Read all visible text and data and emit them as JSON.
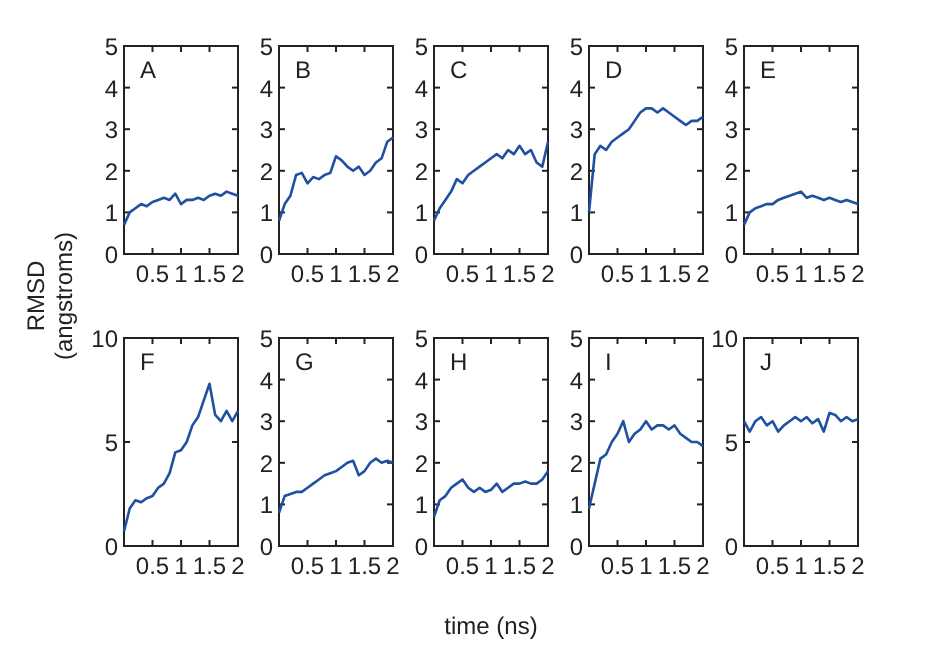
{
  "chart_data": [
    {
      "type": "line",
      "annotations": [
        "A"
      ],
      "ylabel": "RMSD\n(angstroms)",
      "x": [
        0,
        0.1,
        0.2,
        0.3,
        0.4,
        0.5,
        0.6,
        0.7,
        0.8,
        0.9,
        1,
        1.1,
        1.2,
        1.3,
        1.4,
        1.5,
        1.6,
        1.7,
        1.8,
        1.9,
        2
      ],
      "xlim": [
        0,
        2
      ],
      "xticks": [
        0.5,
        1,
        1.5,
        2
      ],
      "ylim": [
        0,
        5
      ],
      "yticks": [
        0,
        1,
        2,
        3,
        4,
        5
      ],
      "series": [
        {
          "color": "#2050a0",
          "values": [
            0.7,
            1.0,
            1.1,
            1.2,
            1.15,
            1.25,
            1.3,
            1.35,
            1.3,
            1.45,
            1.2,
            1.3,
            1.3,
            1.35,
            1.3,
            1.4,
            1.45,
            1.4,
            1.5,
            1.45,
            1.4
          ]
        }
      ]
    },
    {
      "type": "line",
      "annotations": [
        "B"
      ],
      "x": [
        0,
        0.1,
        0.2,
        0.3,
        0.4,
        0.5,
        0.6,
        0.7,
        0.8,
        0.9,
        1,
        1.1,
        1.2,
        1.3,
        1.4,
        1.5,
        1.6,
        1.7,
        1.8,
        1.9,
        2
      ],
      "xlim": [
        0,
        2
      ],
      "xticks": [
        0.5,
        1,
        1.5,
        2
      ],
      "ylim": [
        0,
        5
      ],
      "yticks": [
        0,
        1,
        2,
        3,
        4,
        5
      ],
      "series": [
        {
          "color": "#2050a0",
          "values": [
            0.8,
            1.2,
            1.4,
            1.9,
            1.95,
            1.7,
            1.85,
            1.8,
            1.9,
            1.95,
            2.35,
            2.25,
            2.1,
            2.0,
            2.1,
            1.9,
            2.0,
            2.2,
            2.3,
            2.7,
            2.8
          ]
        }
      ]
    },
    {
      "type": "line",
      "annotations": [
        "C"
      ],
      "x": [
        0,
        0.1,
        0.2,
        0.3,
        0.4,
        0.5,
        0.6,
        0.7,
        0.8,
        0.9,
        1,
        1.1,
        1.2,
        1.3,
        1.4,
        1.5,
        1.6,
        1.7,
        1.8,
        1.9,
        2
      ],
      "xlim": [
        0,
        2
      ],
      "xticks": [
        0.5,
        1,
        1.5,
        2
      ],
      "ylim": [
        0,
        5
      ],
      "yticks": [
        0,
        1,
        2,
        3,
        4,
        5
      ],
      "series": [
        {
          "color": "#2050a0",
          "values": [
            0.8,
            1.1,
            1.3,
            1.5,
            1.8,
            1.7,
            1.9,
            2.0,
            2.1,
            2.2,
            2.3,
            2.4,
            2.3,
            2.5,
            2.4,
            2.6,
            2.4,
            2.5,
            2.2,
            2.1,
            2.7
          ]
        }
      ]
    },
    {
      "type": "line",
      "annotations": [
        "D"
      ],
      "x": [
        0,
        0.1,
        0.2,
        0.3,
        0.4,
        0.5,
        0.6,
        0.7,
        0.8,
        0.9,
        1,
        1.1,
        1.2,
        1.3,
        1.4,
        1.5,
        1.6,
        1.7,
        1.8,
        1.9,
        2
      ],
      "xlim": [
        0,
        2
      ],
      "xticks": [
        0.5,
        1,
        1.5,
        2
      ],
      "ylim": [
        0,
        5
      ],
      "yticks": [
        0,
        1,
        2,
        3,
        4,
        5
      ],
      "series": [
        {
          "color": "#2050a0",
          "values": [
            1.0,
            2.4,
            2.6,
            2.5,
            2.7,
            2.8,
            2.9,
            3.0,
            3.2,
            3.4,
            3.5,
            3.5,
            3.4,
            3.5,
            3.4,
            3.3,
            3.2,
            3.1,
            3.2,
            3.2,
            3.3
          ]
        }
      ]
    },
    {
      "type": "line",
      "annotations": [
        "E"
      ],
      "x": [
        0,
        0.1,
        0.2,
        0.3,
        0.4,
        0.5,
        0.6,
        0.7,
        0.8,
        0.9,
        1,
        1.1,
        1.2,
        1.3,
        1.4,
        1.5,
        1.6,
        1.7,
        1.8,
        1.9,
        2
      ],
      "xlim": [
        0,
        2
      ],
      "xticks": [
        0.5,
        1,
        1.5,
        2
      ],
      "ylim": [
        0,
        5
      ],
      "yticks": [
        0,
        1,
        2,
        3,
        4,
        5
      ],
      "series": [
        {
          "color": "#2050a0",
          "values": [
            0.7,
            1.0,
            1.1,
            1.15,
            1.2,
            1.2,
            1.3,
            1.35,
            1.4,
            1.45,
            1.5,
            1.35,
            1.4,
            1.35,
            1.3,
            1.35,
            1.3,
            1.25,
            1.3,
            1.25,
            1.2
          ]
        }
      ]
    },
    {
      "type": "line",
      "annotations": [
        "F"
      ],
      "x": [
        0,
        0.1,
        0.2,
        0.3,
        0.4,
        0.5,
        0.6,
        0.7,
        0.8,
        0.9,
        1,
        1.1,
        1.2,
        1.3,
        1.4,
        1.5,
        1.6,
        1.7,
        1.8,
        1.9,
        2
      ],
      "xlim": [
        0,
        2
      ],
      "xticks": [
        0.5,
        1,
        1.5,
        2
      ],
      "ylim": [
        0,
        10
      ],
      "yticks": [
        0,
        5,
        10
      ],
      "series": [
        {
          "color": "#2050a0",
          "values": [
            0.7,
            1.8,
            2.2,
            2.1,
            2.3,
            2.4,
            2.8,
            3.0,
            3.5,
            4.5,
            4.6,
            5.0,
            5.8,
            6.2,
            7.0,
            7.8,
            6.3,
            6.0,
            6.5,
            6.0,
            6.5
          ]
        }
      ]
    },
    {
      "type": "line",
      "annotations": [
        "G"
      ],
      "x": [
        0,
        0.1,
        0.2,
        0.3,
        0.4,
        0.5,
        0.6,
        0.7,
        0.8,
        0.9,
        1,
        1.1,
        1.2,
        1.3,
        1.4,
        1.5,
        1.6,
        1.7,
        1.8,
        1.9,
        2
      ],
      "xlim": [
        0,
        2
      ],
      "xticks": [
        0.5,
        1,
        1.5,
        2
      ],
      "ylim": [
        0,
        5
      ],
      "yticks": [
        0,
        1,
        2,
        3,
        4,
        5
      ],
      "series": [
        {
          "color": "#2050a0",
          "values": [
            0.8,
            1.2,
            1.25,
            1.3,
            1.3,
            1.4,
            1.5,
            1.6,
            1.7,
            1.75,
            1.8,
            1.9,
            2.0,
            2.05,
            1.7,
            1.8,
            2.0,
            2.1,
            2.0,
            2.05,
            2.0
          ]
        }
      ]
    },
    {
      "type": "line",
      "annotations": [
        "H"
      ],
      "xlabel": "time (ns)",
      "x": [
        0,
        0.1,
        0.2,
        0.3,
        0.4,
        0.5,
        0.6,
        0.7,
        0.8,
        0.9,
        1,
        1.1,
        1.2,
        1.3,
        1.4,
        1.5,
        1.6,
        1.7,
        1.8,
        1.9,
        2
      ],
      "xlim": [
        0,
        2
      ],
      "xticks": [
        0.5,
        1,
        1.5,
        2
      ],
      "ylim": [
        0,
        5
      ],
      "yticks": [
        0,
        1,
        2,
        3,
        4,
        5
      ],
      "series": [
        {
          "color": "#2050a0",
          "values": [
            0.7,
            1.1,
            1.2,
            1.4,
            1.5,
            1.6,
            1.4,
            1.3,
            1.4,
            1.3,
            1.35,
            1.5,
            1.3,
            1.4,
            1.5,
            1.5,
            1.55,
            1.5,
            1.5,
            1.6,
            1.8
          ]
        }
      ]
    },
    {
      "type": "line",
      "annotations": [
        "I"
      ],
      "x": [
        0,
        0.1,
        0.2,
        0.3,
        0.4,
        0.5,
        0.6,
        0.7,
        0.8,
        0.9,
        1,
        1.1,
        1.2,
        1.3,
        1.4,
        1.5,
        1.6,
        1.7,
        1.8,
        1.9,
        2
      ],
      "xlim": [
        0,
        2
      ],
      "xticks": [
        0.5,
        1,
        1.5,
        2
      ],
      "ylim": [
        0,
        5
      ],
      "yticks": [
        0,
        1,
        2,
        3,
        4,
        5
      ],
      "series": [
        {
          "color": "#2050a0",
          "values": [
            0.9,
            1.5,
            2.1,
            2.2,
            2.5,
            2.7,
            3.0,
            2.5,
            2.7,
            2.8,
            3.0,
            2.8,
            2.9,
            2.9,
            2.8,
            2.9,
            2.7,
            2.6,
            2.5,
            2.5,
            2.4
          ]
        }
      ]
    },
    {
      "type": "line",
      "annotations": [
        "J"
      ],
      "x": [
        0,
        0.1,
        0.2,
        0.3,
        0.4,
        0.5,
        0.6,
        0.7,
        0.8,
        0.9,
        1,
        1.1,
        1.2,
        1.3,
        1.4,
        1.5,
        1.6,
        1.7,
        1.8,
        1.9,
        2
      ],
      "xlim": [
        0,
        2
      ],
      "xticks": [
        0.5,
        1,
        1.5,
        2
      ],
      "ylim": [
        0,
        10
      ],
      "yticks": [
        0,
        5,
        10
      ],
      "series": [
        {
          "color": "#2050a0",
          "values": [
            6.0,
            5.5,
            6.0,
            6.2,
            5.8,
            6.0,
            5.5,
            5.8,
            6.0,
            6.2,
            6.0,
            6.2,
            5.9,
            6.1,
            5.5,
            6.4,
            6.3,
            6.0,
            6.2,
            6.0,
            6.1
          ]
        }
      ]
    }
  ]
}
